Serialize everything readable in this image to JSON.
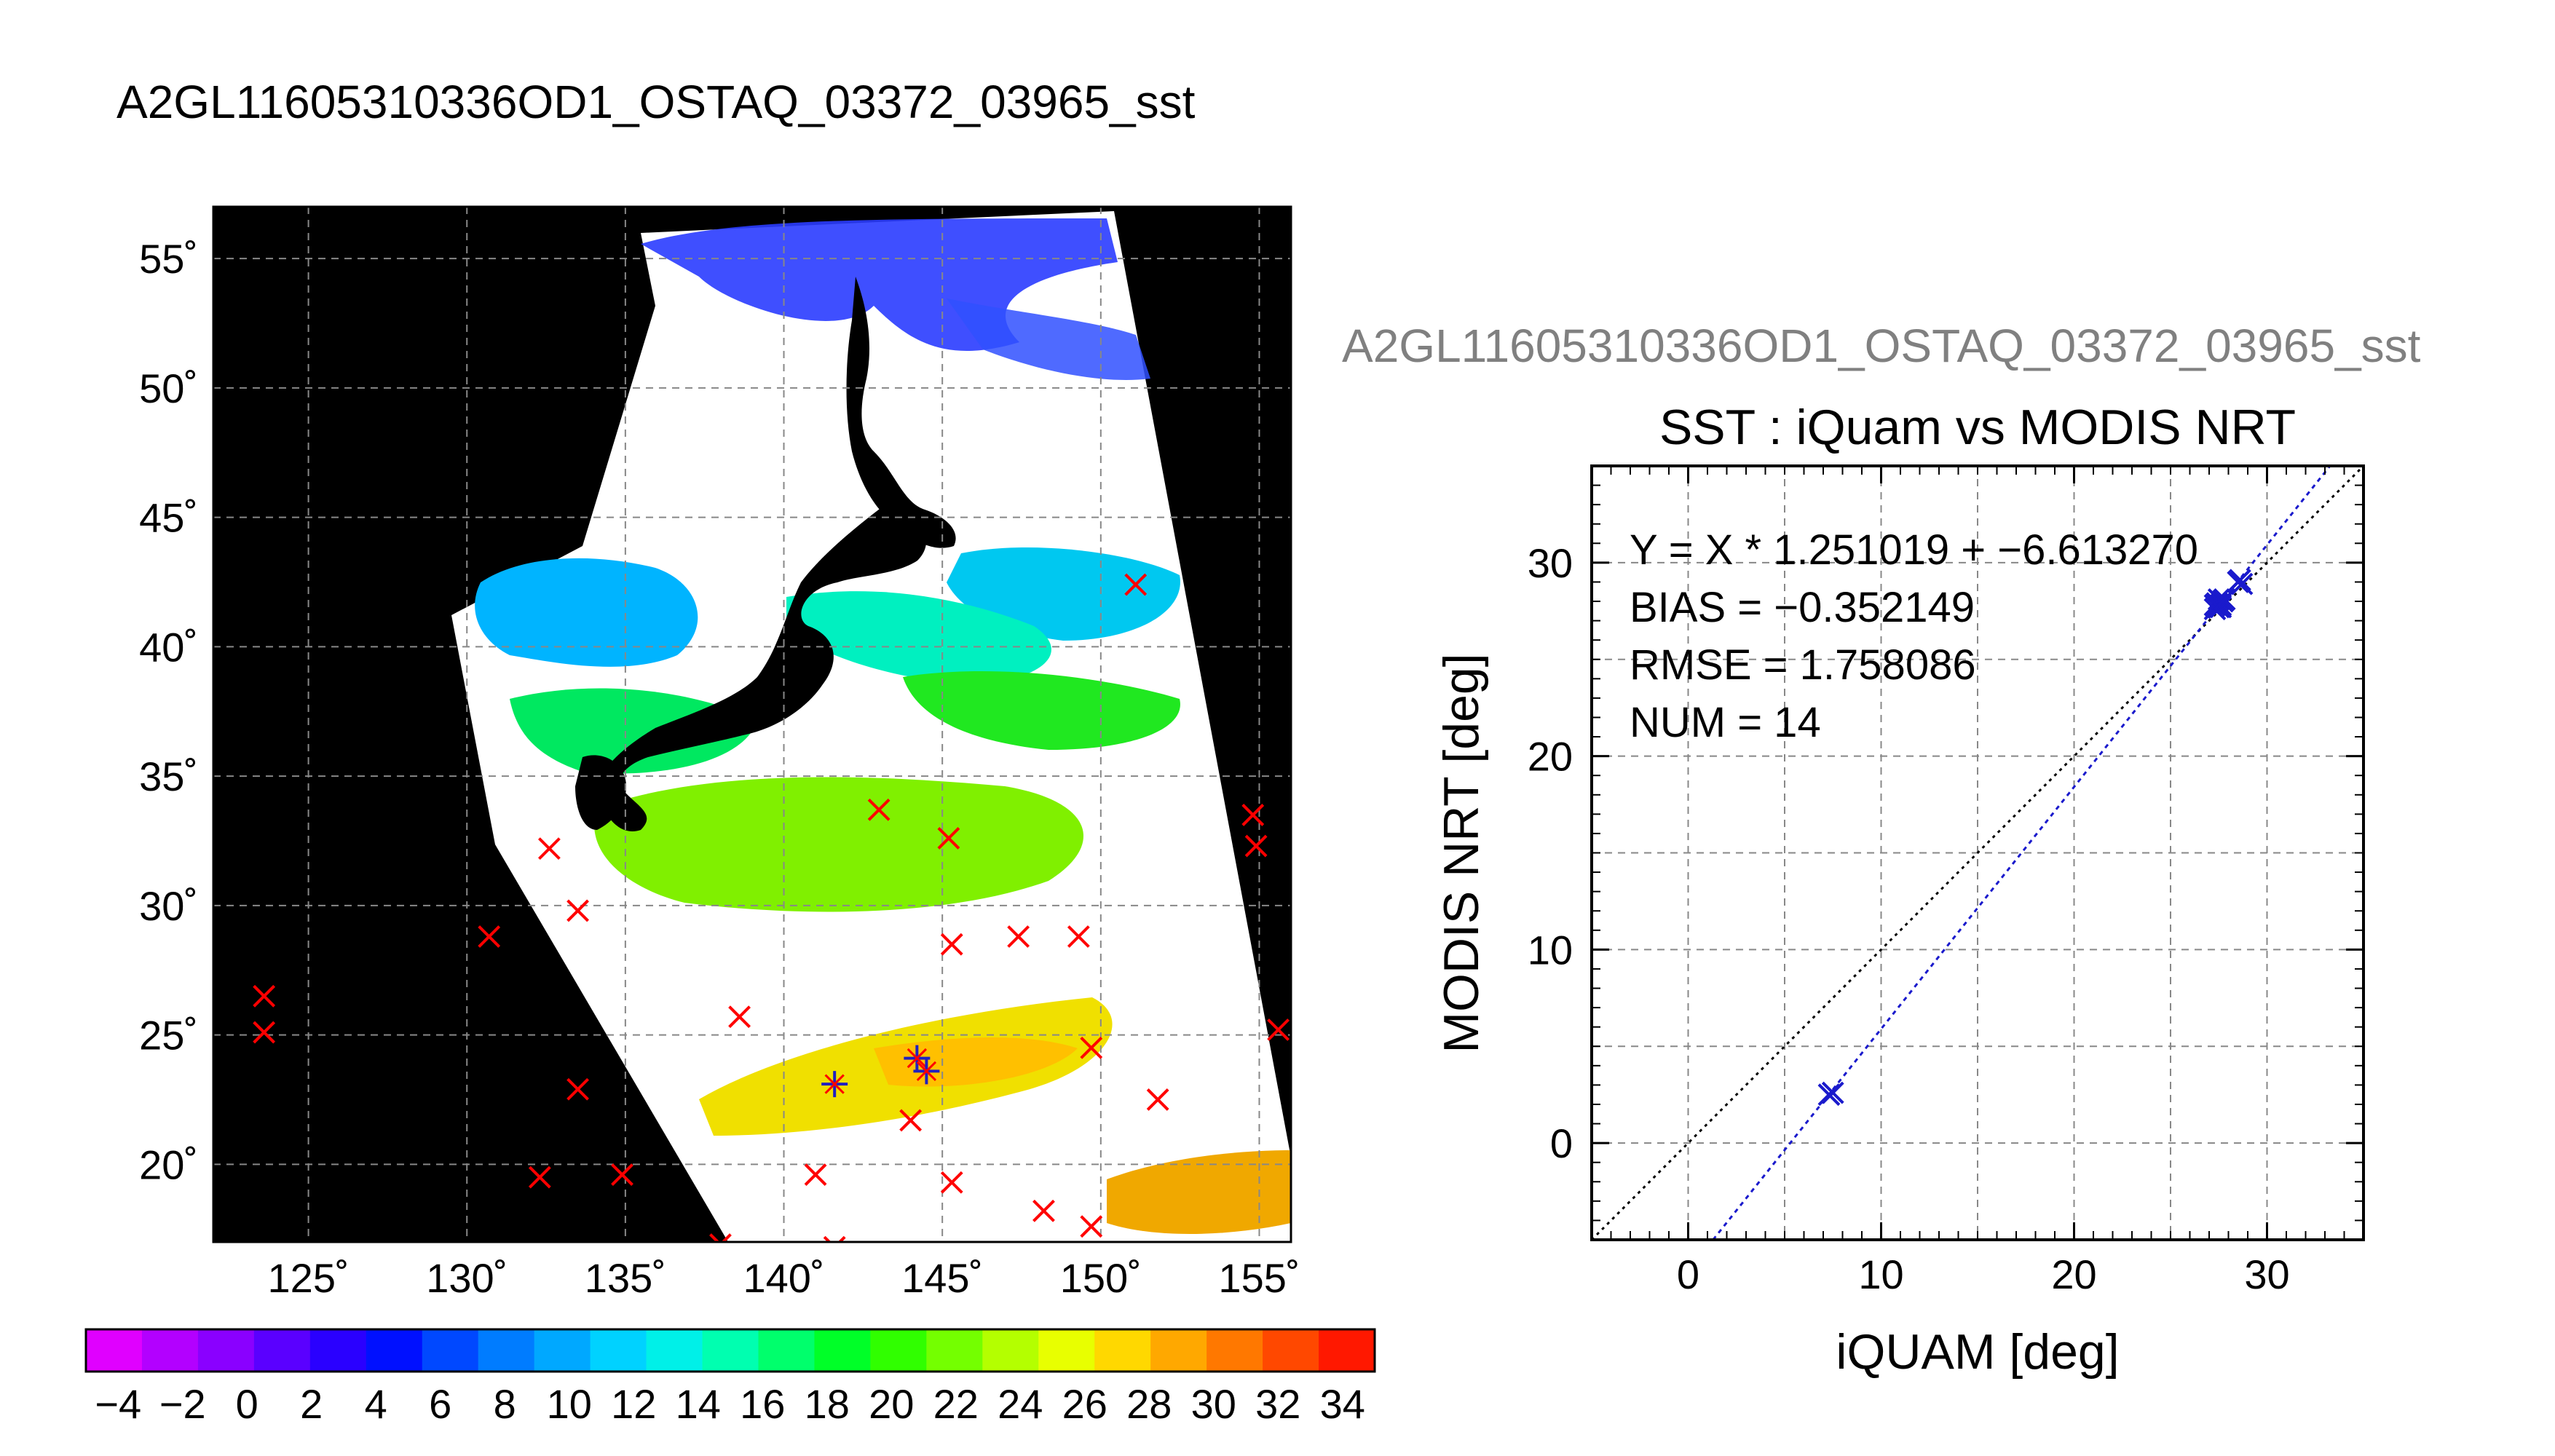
{
  "title": "A2GL11605310336OD1_OSTAQ_03372_03965_sst",
  "scatter_suptitle": "A2GL11605310336OD1_OSTAQ_03372_03965_sst",
  "chart_data": [
    {
      "type": "heatmap",
      "map": {
        "lon_range": [
          122,
          156
        ],
        "lat_range": [
          17,
          57
        ],
        "lon_ticks": [
          125,
          130,
          135,
          140,
          145,
          150,
          155
        ],
        "lat_ticks": [
          20,
          25,
          30,
          35,
          40,
          45,
          50,
          55
        ],
        "lon_tick_labels": [
          "125˚",
          "130˚",
          "135˚",
          "140˚",
          "145˚",
          "150˚",
          "155˚"
        ],
        "lat_tick_labels": [
          "20˚",
          "25˚",
          "30˚",
          "35˚",
          "40˚",
          "45˚",
          "50˚",
          "55˚"
        ],
        "grid": true,
        "colors": {
          "background": "#000000",
          "cloud": "#ffffff",
          "marker_outside": "#ff0000",
          "marker_matched": "#2020c0"
        }
      },
      "buoys": [
        {
          "lon": 123.6,
          "lat": 26.5
        },
        {
          "lon": 123.6,
          "lat": 25.1
        },
        {
          "lon": 130.7,
          "lat": 28.8
        },
        {
          "lon": 132.6,
          "lat": 32.2
        },
        {
          "lon": 133.5,
          "lat": 29.8
        },
        {
          "lon": 133.5,
          "lat": 22.9
        },
        {
          "lon": 132.3,
          "lat": 19.5
        },
        {
          "lon": 134.9,
          "lat": 19.6
        },
        {
          "lon": 138.6,
          "lat": 25.7
        },
        {
          "lon": 138.0,
          "lat": 16.9
        },
        {
          "lon": 141.0,
          "lat": 19.6
        },
        {
          "lon": 141.6,
          "lat": 16.8
        },
        {
          "lon": 143.0,
          "lat": 33.7
        },
        {
          "lon": 145.2,
          "lat": 32.6
        },
        {
          "lon": 145.3,
          "lat": 28.5
        },
        {
          "lon": 147.4,
          "lat": 28.8
        },
        {
          "lon": 149.3,
          "lat": 28.8
        },
        {
          "lon": 149.7,
          "lat": 24.5
        },
        {
          "lon": 151.8,
          "lat": 22.5
        },
        {
          "lon": 151.1,
          "lat": 42.4
        },
        {
          "lon": 144.0,
          "lat": 21.7
        },
        {
          "lon": 145.3,
          "lat": 19.3
        },
        {
          "lon": 148.2,
          "lat": 18.2
        },
        {
          "lon": 149.7,
          "lat": 17.6
        },
        {
          "lon": 154.8,
          "lat": 33.5
        },
        {
          "lon": 154.9,
          "lat": 32.3
        },
        {
          "lon": 155.6,
          "lat": 25.2
        }
      ],
      "matched": [
        {
          "lon": 141.6,
          "lat": 23.1
        },
        {
          "lon": 144.2,
          "lat": 24.1
        },
        {
          "lon": 144.5,
          "lat": 23.6
        }
      ],
      "colorbar": {
        "range": [
          -5,
          35
        ],
        "tick_labels": [
          "−4",
          "−2",
          "0",
          "2",
          "4",
          "6",
          "8",
          "10",
          "12",
          "14",
          "16",
          "18",
          "20",
          "22",
          "24",
          "26",
          "28",
          "30",
          "32",
          "34"
        ],
        "colors": [
          "#e000ff",
          "#b300ff",
          "#8a00ff",
          "#5a00ff",
          "#2a00ff",
          "#0010ff",
          "#0048ff",
          "#007cff",
          "#00a8ff",
          "#00d2ff",
          "#00f0e8",
          "#00ffb0",
          "#00ff6c",
          "#00ff28",
          "#30ff00",
          "#74ff00",
          "#b4ff00",
          "#e8ff00",
          "#ffd800",
          "#ffa800",
          "#ff7800",
          "#ff4800",
          "#ff1800"
        ]
      }
    },
    {
      "type": "scatter",
      "title": "SST : iQuam vs MODIS NRT",
      "xlabel": "iQUAM [deg]",
      "ylabel": "MODIS NRT [deg]",
      "xlim": [
        -5,
        35
      ],
      "ylim": [
        -5,
        35
      ],
      "x_ticks": [
        0,
        10,
        20,
        30
      ],
      "y_ticks": [
        0,
        10,
        20,
        30
      ],
      "grid": true,
      "annotations": [
        "Y = X * 1.251019 + −6.613270",
        "BIAS = −0.352149",
        "RMSE = 1.758086",
        "NUM = 14"
      ],
      "fit": {
        "slope": 1.251019,
        "intercept": -6.61327
      },
      "points": [
        {
          "x": 7.3,
          "y": 2.5
        },
        {
          "x": 7.5,
          "y": 2.6
        },
        {
          "x": 27.3,
          "y": 27.6
        },
        {
          "x": 27.4,
          "y": 27.9
        },
        {
          "x": 27.5,
          "y": 28.1
        },
        {
          "x": 27.6,
          "y": 27.8
        },
        {
          "x": 27.7,
          "y": 28.0
        },
        {
          "x": 27.3,
          "y": 27.8
        },
        {
          "x": 27.6,
          "y": 27.7
        },
        {
          "x": 28.5,
          "y": 29.0
        },
        {
          "x": 28.7,
          "y": 28.9
        },
        {
          "x": 28.6,
          "y": 29.1
        },
        {
          "x": 27.5,
          "y": 27.7
        },
        {
          "x": 27.8,
          "y": 28.1
        }
      ],
      "colors": {
        "points": "#1a1acc",
        "fit_line": "#1a1acc",
        "one_to_one": "#000000"
      }
    }
  ]
}
